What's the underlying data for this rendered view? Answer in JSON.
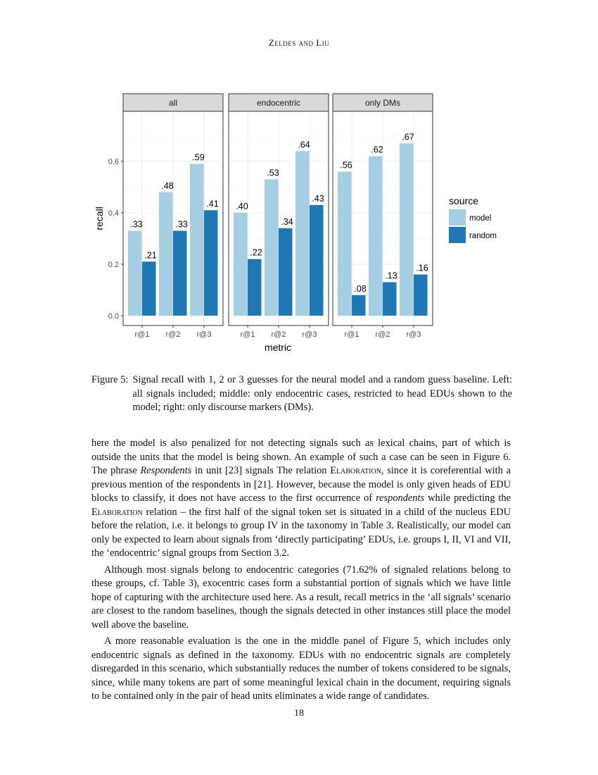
{
  "header": {
    "running_head": "Zeldes and Liu"
  },
  "chart_data": {
    "type": "bar",
    "facets": [
      "all",
      "endocentric",
      "only DMs"
    ],
    "categories": [
      "r@1",
      "r@2",
      "r@3"
    ],
    "xlabel": "metric",
    "ylabel": "recall",
    "ylim": [
      0,
      0.795
    ],
    "yticks": [
      0.0,
      0.2,
      0.4,
      0.6
    ],
    "ytick_labels": [
      "0.0",
      "0.2",
      "0.4",
      "0.6"
    ],
    "grid": true,
    "legend": {
      "title": "source",
      "placement": "right",
      "entries": [
        "model",
        "random"
      ]
    },
    "colors": {
      "model": "#a6cee3",
      "random": "#1f78b4"
    },
    "series": [
      {
        "name": "model",
        "values": [
          [
            0.33,
            0.48,
            0.59
          ],
          [
            0.4,
            0.53,
            0.64
          ],
          [
            0.56,
            0.62,
            0.67
          ]
        ],
        "labels": [
          [
            ".33",
            ".48",
            ".59"
          ],
          [
            ".40",
            ".53",
            ".64"
          ],
          [
            ".56",
            ".62",
            ".67"
          ]
        ]
      },
      {
        "name": "random",
        "values": [
          [
            0.21,
            0.33,
            0.41
          ],
          [
            0.22,
            0.34,
            0.43
          ],
          [
            0.08,
            0.13,
            0.16
          ]
        ],
        "labels": [
          [
            ".21",
            ".33",
            ".41"
          ],
          [
            ".22",
            ".34",
            ".43"
          ],
          [
            ".08",
            ".13",
            ".16"
          ]
        ]
      }
    ]
  },
  "caption": {
    "label": "Figure 5:",
    "text": "Signal recall with 1, 2 or 3 guesses for the neural model and a random guess baseline. Left: all signals included; middle: only endocentric cases, restricted to head EDUs shown to the model; right: only discourse markers (DMs)."
  },
  "body": {
    "p1": {
      "a": "here the model is also penalized for not detecting signals such as lexical chains, part of which is outside the units that the model is being shown. An example of such a case can be seen in Figure 6. The phrase ",
      "b": "Respondents",
      "c": " in unit [23] signals The relation ",
      "d": "Elaboration",
      "e": ", since it is coreferential with a previous mention of the respondents in [21]. However, because the model is only given heads of EDU blocks to classify, it does not have access to the first occurrence of ",
      "f": "respondents",
      "g": " while predicting the ",
      "h": "Elaboration",
      "i": " relation – the first half of the signal token set is situated in a child of the nucleus EDU before the relation, i.e. it belongs to group IV in the taxonomy in Table 3. Realistically, our model can only be expected to learn about signals from ‘directly participating’ EDUs, i.e. groups I, II, VI and VII, the ‘endocentric’ signal groups from Section 3.2."
    },
    "p2": "Although most signals belong to endocentric categories (71.62% of signaled relations belong to these groups, cf. Table 3), exocentric cases form a substantial portion of signals which we have little hope of capturing with the architecture used here. As a result, recall metrics in the ‘all signals’ scenario are closest to the random baselines, though the signals detected in other instances still place the model well above the baseline.",
    "p3": "A more reasonable evaluation is the one in the middle panel of Figure 5, which includes only endocentric signals as defined in the taxonomy. EDUs with no endocentric signals are completely disregarded in this scenario, which substantially reduces the number of tokens considered to be signals, since, while many tokens are part of some meaningful lexical chain in the document, requiring signals to be contained only in the pair of head units eliminates a wide range of candidates."
  },
  "page_number": "18"
}
